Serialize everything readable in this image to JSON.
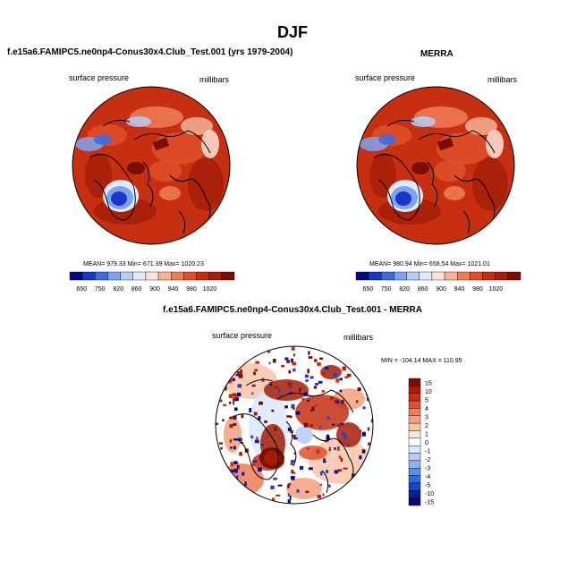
{
  "page_title": "DJF",
  "panels": [
    {
      "title": "f.e15a6.FAMIPC5.ne0np4-Conus30x4.Club_Test.001 (yrs 1979-2004)",
      "left_label": "surface pressure",
      "right_label": "millibars",
      "stats": "MEAN= 979.33   Min= 671.39   Max= 1020.23"
    },
    {
      "title": "MERRA",
      "left_label": "surface pressure",
      "right_label": "millibars",
      "stats": "MEAN= 980.94   Min= 658.54   Max= 1021.01"
    },
    {
      "title": "f.e15a6.FAMIPC5.ne0np4-Conus30x4.Club_Test.001 - MERRA",
      "left_label": "surface pressure",
      "right_label": "millibars",
      "stats": "MIN = -104.14  MAX = 110.95"
    }
  ],
  "chart_data": [
    {
      "type": "heatmap",
      "projection": "north polar stereographic",
      "variable": "surface pressure",
      "units": "millibars",
      "mean": 979.33,
      "min": 671.39,
      "max": 1020.23,
      "colorbar": {
        "orientation": "horizontal",
        "labels": [
          "650",
          "750",
          "820",
          "860",
          "900",
          "940",
          "980",
          "1020"
        ],
        "colors": [
          "#08087a",
          "#1a35c8",
          "#3d6be0",
          "#7fa3ef",
          "#b5cdf7",
          "#e0ecfb",
          "#fde3d6",
          "#f7b295",
          "#ee7d58",
          "#e0502a",
          "#c62f10",
          "#a51d08",
          "#7a0e04"
        ]
      }
    },
    {
      "type": "heatmap",
      "projection": "north polar stereographic",
      "variable": "surface pressure",
      "units": "millibars",
      "mean": 980.94,
      "min": 658.54,
      "max": 1021.01,
      "colorbar": {
        "orientation": "horizontal",
        "labels": [
          "650",
          "750",
          "820",
          "860",
          "900",
          "940",
          "980",
          "1020"
        ],
        "colors": [
          "#08087a",
          "#1a35c8",
          "#3d6be0",
          "#7fa3ef",
          "#b5cdf7",
          "#e0ecfb",
          "#fde3d6",
          "#f7b295",
          "#ee7d58",
          "#e0502a",
          "#c62f10",
          "#a51d08",
          "#7a0e04"
        ]
      }
    },
    {
      "type": "heatmap",
      "projection": "north polar stereographic",
      "variable": "surface pressure difference",
      "units": "millibars",
      "min": -104.14,
      "max": 110.95,
      "colorbar": {
        "orientation": "vertical",
        "labels": [
          "15",
          "10",
          "5",
          "4",
          "3",
          "2",
          "1",
          "0",
          "-1",
          "-2",
          "-3",
          "-4",
          "-5",
          "-10",
          "-15"
        ],
        "colors": [
          "#7a0e04",
          "#a51d08",
          "#c62f10",
          "#e0502a",
          "#ee7d58",
          "#f5a07e",
          "#f9c4ab",
          "#fde7db",
          "#ffffff",
          "#dce8fb",
          "#b5cdf7",
          "#8fb1f2",
          "#5f8ce8",
          "#3568dd",
          "#1d45c8",
          "#0a1f9a",
          "#08087a"
        ]
      }
    }
  ]
}
